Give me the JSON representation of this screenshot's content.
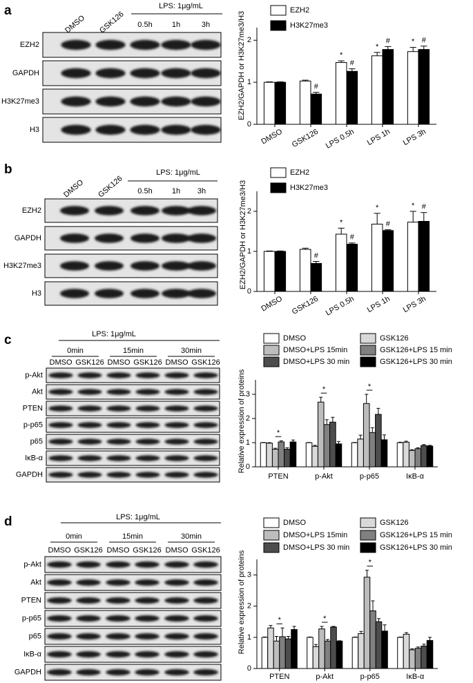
{
  "figure": {
    "panels": [
      {
        "label": "a",
        "treatment": "LPS: 1μg/mL",
        "lanes": [
          "DMSO",
          "GSK126",
          "0.5h",
          "1h",
          "3h"
        ],
        "rows": [
          "EZH2",
          "GAPDH",
          "H3K27me3",
          "H3"
        ]
      },
      {
        "label": "b",
        "treatment": "LPS: 1μg/mL",
        "lanes": [
          "DMSO",
          "GSK126",
          "0.5h",
          "1h",
          "3h"
        ],
        "rows": [
          "EZH2",
          "GAPDH",
          "H3K27me3",
          "H3"
        ]
      },
      {
        "label": "c",
        "treatment": "LPS: 1μg/mL",
        "groups": [
          "0min",
          "15min",
          "30min"
        ],
        "lanes": [
          "DMSO",
          "GSK126",
          "DMSO",
          "GSK126",
          "DMSO",
          "GSK126"
        ],
        "rows": [
          "p-Akt",
          "Akt",
          "PTEN",
          "p-p65",
          "p65",
          "IκB-α",
          "GAPDH"
        ]
      },
      {
        "label": "d",
        "treatment": "LPS: 1μg/mL",
        "groups": [
          "0min",
          "15min",
          "30min"
        ],
        "lanes": [
          "DMSO",
          "GSK126",
          "DMSO",
          "GSK126",
          "DMSO",
          "GSK126"
        ],
        "rows": [
          "p-Akt",
          "Akt",
          "PTEN",
          "p-p65",
          "p65",
          "IκB-α",
          "GAPDH"
        ]
      }
    ]
  },
  "chart_data": [
    {
      "type": "bar",
      "ylabel": "EZH2/GAPDH or H3K27me3/H3",
      "categories": [
        "DMSO",
        "GSK126",
        "LPS 0.5h",
        "LPS 1h",
        "LPS 3h"
      ],
      "series": [
        {
          "name": "EZH2",
          "color": "#ffffff",
          "values": [
            1,
            1.03,
            1.47,
            1.63,
            1.73
          ],
          "errors": [
            0.01,
            0.02,
            0.04,
            0.08,
            0.1
          ],
          "markers": [
            null,
            null,
            "*",
            "*",
            "*"
          ]
        },
        {
          "name": "H3K27me3",
          "color": "#000000",
          "values": [
            1,
            0.72,
            1.26,
            1.78,
            1.78
          ],
          "errors": [
            0.01,
            0.04,
            0.06,
            0.07,
            0.08
          ],
          "markers": [
            null,
            "#",
            "#",
            "#",
            "#"
          ]
        }
      ],
      "ylim": [
        0,
        2.3
      ],
      "yticks": [
        0,
        1,
        2
      ]
    },
    {
      "type": "bar",
      "ylabel": "EZH2/GAPDH or H3K27me3/H3",
      "categories": [
        "DMSO",
        "GSK126",
        "LPS 0.5h",
        "LPS 1h",
        "LPS 3h"
      ],
      "series": [
        {
          "name": "EZH2",
          "color": "#ffffff",
          "values": [
            1,
            1.05,
            1.43,
            1.68,
            1.73
          ],
          "errors": [
            0.01,
            0.03,
            0.15,
            0.27,
            0.27
          ],
          "markers": [
            null,
            null,
            "*",
            "*",
            "*"
          ]
        },
        {
          "name": "H3K27me3",
          "color": "#000000",
          "values": [
            1,
            0.7,
            1.18,
            1.52,
            1.75
          ],
          "errors": [
            0.01,
            0.05,
            0.03,
            0.02,
            0.22
          ],
          "markers": [
            null,
            "#",
            "#",
            "#",
            "#"
          ]
        }
      ],
      "ylim": [
        0,
        2.5
      ],
      "yticks": [
        0,
        1,
        2
      ]
    },
    {
      "type": "bar",
      "ylabel": "Relative expression of proteins",
      "categories": [
        "PTEN",
        "p-Akt",
        "p-p65",
        "IκB-α"
      ],
      "series": [
        {
          "name": "DMSO",
          "color": "#ffffff",
          "values": [
            1,
            1,
            1,
            1
          ],
          "errors": [
            0.01,
            0.01,
            0.01,
            0.02
          ]
        },
        {
          "name": "GSK126",
          "color": "#d9d9d9",
          "values": [
            0.98,
            0.85,
            1.15,
            1.02
          ],
          "errors": [
            0.02,
            0.04,
            0.16,
            0.04
          ]
        },
        {
          "name": "DMSO+LPS 15min",
          "color": "#bdbdbd",
          "values": [
            0.73,
            2.68,
            2.62,
            0.68
          ],
          "errors": [
            0.04,
            0.2,
            0.38,
            0.03
          ]
        },
        {
          "name": "GSK126+LPS 15 min",
          "color": "#808080",
          "values": [
            1.03,
            1.75,
            1.42,
            0.75
          ],
          "errors": [
            0.05,
            0.2,
            0.2,
            0.04
          ],
          "markers": [
            "*",
            "*",
            "*",
            null
          ]
        },
        {
          "name": "DMSO+LPS 30 min",
          "color": "#4d4d4d",
          "values": [
            0.73,
            1.85,
            2.17,
            0.88
          ],
          "errors": [
            0.06,
            0.2,
            0.25,
            0.04
          ]
        },
        {
          "name": "GSK126+LPS 30 min",
          "color": "#000000",
          "values": [
            1.03,
            0.95,
            1.12,
            0.86
          ],
          "errors": [
            0.08,
            0.1,
            0.2,
            0.03
          ]
        }
      ],
      "ylim": [
        0,
        3.6
      ],
      "yticks": [
        0,
        1,
        2,
        3
      ]
    },
    {
      "type": "bar",
      "ylabel": "Relative expression of proteins",
      "categories": [
        "PTEN",
        "p-Akt",
        "p-p65",
        "IκB-α"
      ],
      "series": [
        {
          "name": "DMSO",
          "color": "#ffffff",
          "values": [
            1,
            1,
            1,
            1
          ],
          "errors": [
            0.01,
            0.01,
            0.01,
            0.01
          ]
        },
        {
          "name": "GSK126",
          "color": "#d9d9d9",
          "values": [
            1.3,
            0.7,
            1.12,
            1.1
          ],
          "errors": [
            0.08,
            0.07,
            0.07,
            0.05
          ]
        },
        {
          "name": "DMSO+LPS 15min",
          "color": "#bdbdbd",
          "values": [
            0.88,
            1.27,
            2.93,
            0.6
          ],
          "errors": [
            0.15,
            0.08,
            0.22,
            0.03
          ]
        },
        {
          "name": "GSK126+LPS 15 min",
          "color": "#808080",
          "values": [
            1.02,
            0.88,
            1.85,
            0.65
          ],
          "errors": [
            0.28,
            0.05,
            0.32,
            0.04
          ],
          "markers": [
            "*",
            "*",
            "*",
            null
          ]
        },
        {
          "name": "DMSO+LPS 30 min",
          "color": "#4d4d4d",
          "values": [
            0.95,
            1.33,
            1.5,
            0.72
          ],
          "errors": [
            0.08,
            0.02,
            0.1,
            0.06
          ]
        },
        {
          "name": "GSK126+LPS 30 min",
          "color": "#000000",
          "values": [
            1.25,
            0.88,
            1.2,
            0.9
          ],
          "errors": [
            0.1,
            0.01,
            0.2,
            0.1
          ]
        }
      ],
      "ylim": [
        0,
        3.5
      ],
      "yticks": [
        0,
        1,
        2,
        3
      ]
    }
  ]
}
